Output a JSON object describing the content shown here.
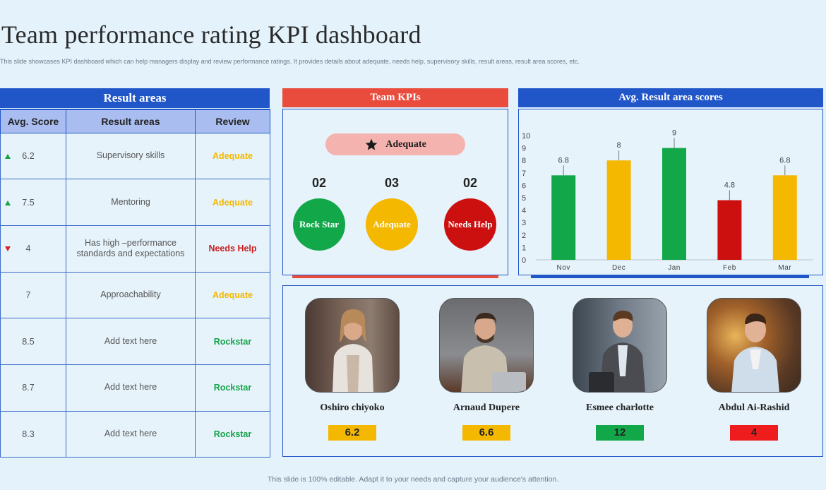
{
  "page": {
    "title": "Team performance rating KPI dashboard",
    "subtitle": "This slide showcases KPI dashboard which can help managers display and review performance ratings. It provides details about adequate, needs help, supervisory skills, result areas, result area scores, etc.",
    "footer": "This slide is 100% editable. Adapt it to your needs and capture your audience's attention."
  },
  "result_areas": {
    "heading": "Result areas",
    "columns": [
      "Avg. Score",
      "Result areas",
      "Review"
    ],
    "rows": [
      {
        "trend": "up",
        "score": "6.2",
        "area": "Supervisory  skills",
        "review": "Adequate",
        "review_color": "#f5b800"
      },
      {
        "trend": "up",
        "score": "7.5",
        "area": "Mentoring",
        "review": "Adequate",
        "review_color": "#f5b800"
      },
      {
        "trend": "down",
        "score": "4",
        "area": "Has high –performance standards and expectations",
        "review": "Needs Help",
        "review_color": "#c81e1e"
      },
      {
        "trend": "none",
        "score": "7",
        "area": "Approachability",
        "review": "Adequate",
        "review_color": "#f5b800"
      },
      {
        "trend": "none",
        "score": "8.5",
        "area": "Add text here",
        "review": "Rockstar",
        "review_color": "#16a34a"
      },
      {
        "trend": "none",
        "score": "8.7",
        "area": "Add text here",
        "review": "Rockstar",
        "review_color": "#16a34a"
      },
      {
        "trend": "none",
        "score": "8.3",
        "area": "Add text here",
        "review": "Rockstar",
        "review_color": "#16a34a"
      }
    ]
  },
  "team_kpis": {
    "heading": "Team KPIs",
    "badge": {
      "label": "Adequate",
      "icon": "star-icon"
    },
    "items": [
      {
        "count": "02",
        "label": "Rock Star",
        "color": "#12a84a"
      },
      {
        "count": "03",
        "label": "Adequate",
        "color": "#f5b800"
      },
      {
        "count": "02",
        "label": "Needs Help",
        "color": "#cc1010"
      }
    ]
  },
  "chart_data": {
    "type": "bar",
    "title": "Avg. Result area scores",
    "categories": [
      "Nov",
      "Dec",
      "Jan",
      "Feb",
      "Mar"
    ],
    "values": [
      6.8,
      8,
      9,
      4.8,
      6.8
    ],
    "data_labels": [
      "6.8",
      "8",
      "9",
      "4.8",
      "6.8"
    ],
    "colors": [
      "#12a84a",
      "#f5b800",
      "#12a84a",
      "#cc1010",
      "#f5b800"
    ],
    "ylim": [
      0,
      10
    ],
    "yticks": [
      0,
      1,
      2,
      3,
      4,
      5,
      6,
      7,
      8,
      9,
      10
    ],
    "xlabel": "",
    "ylabel": "",
    "legend": "none"
  },
  "team_members": [
    {
      "name": "Oshiro chiyoko",
      "score": "6.2",
      "score_color": "#f5b800"
    },
    {
      "name": "Arnaud Dupere",
      "score": "6.6",
      "score_color": "#f5b800"
    },
    {
      "name": "Esmee charlotte",
      "score": "12",
      "score_color": "#12a84a"
    },
    {
      "name": "Abdul Ai-Rashid",
      "score": "4",
      "score_color": "#ee1c1c"
    }
  ]
}
